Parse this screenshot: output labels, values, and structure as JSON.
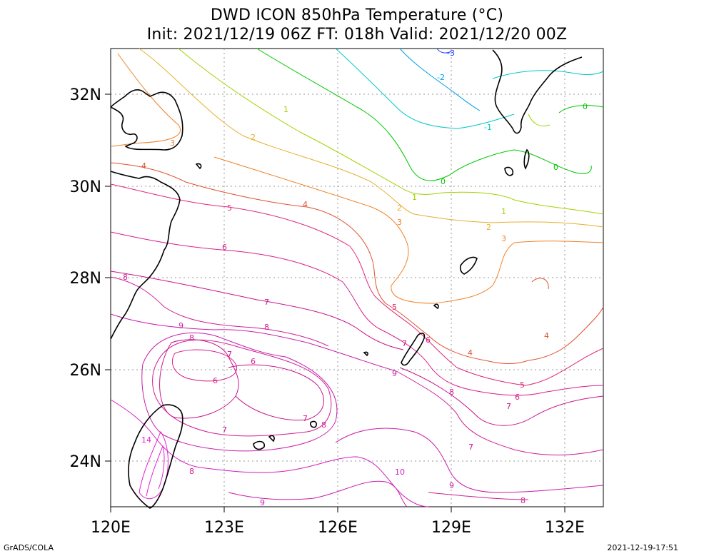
{
  "title_line1": "DWD ICON 850hPa Temperature (°C)",
  "title_line2": "Init: 2021/12/19 06Z  FT: 018h  Valid: 2021/12/20 00Z",
  "footer_left": "GrADS/COLA",
  "footer_right": "2021-12-19-17:51",
  "map": {
    "lon_range": [
      120,
      133
    ],
    "lat_range": [
      23,
      33
    ],
    "lon_ticks": [
      120,
      123,
      126,
      129,
      132
    ],
    "lon_tick_labels": [
      "120E",
      "123E",
      "126E",
      "129E",
      "132E"
    ],
    "lat_ticks": [
      24,
      26,
      28,
      30,
      32
    ],
    "lat_tick_labels": [
      "24N",
      "26N",
      "28N",
      "30N",
      "32N"
    ],
    "grid": "dotted"
  },
  "contour_levels": [
    {
      "value": -3,
      "label": "-3",
      "color": "#1e3cff"
    },
    {
      "value": -2,
      "label": "-2",
      "color": "#00a0e6"
    },
    {
      "value": -1,
      "label": "-1",
      "color": "#00c8c8"
    },
    {
      "value": 0,
      "label": "0",
      "color": "#00c800"
    },
    {
      "value": 1,
      "label": "1",
      "color": "#a0d200"
    },
    {
      "value": 2,
      "label": "2",
      "color": "#e6af2d"
    },
    {
      "value": 3,
      "label": "3",
      "color": "#f08228"
    },
    {
      "value": 4,
      "label": "4",
      "color": "#e0502d"
    },
    {
      "value": 5,
      "label": "5",
      "color": "#e02878"
    },
    {
      "value": 6,
      "label": "6",
      "color": "#d81e8c"
    },
    {
      "value": 7,
      "label": "7",
      "color": "#c8148c"
    },
    {
      "value": 8,
      "label": "8",
      "color": "#d01e96"
    },
    {
      "value": 9,
      "label": "9",
      "color": "#c81eaa"
    },
    {
      "value": 10,
      "label": "10",
      "color": "#d21ebe"
    },
    {
      "value": 14,
      "label": "14",
      "color": "#e61ed2"
    }
  ]
}
